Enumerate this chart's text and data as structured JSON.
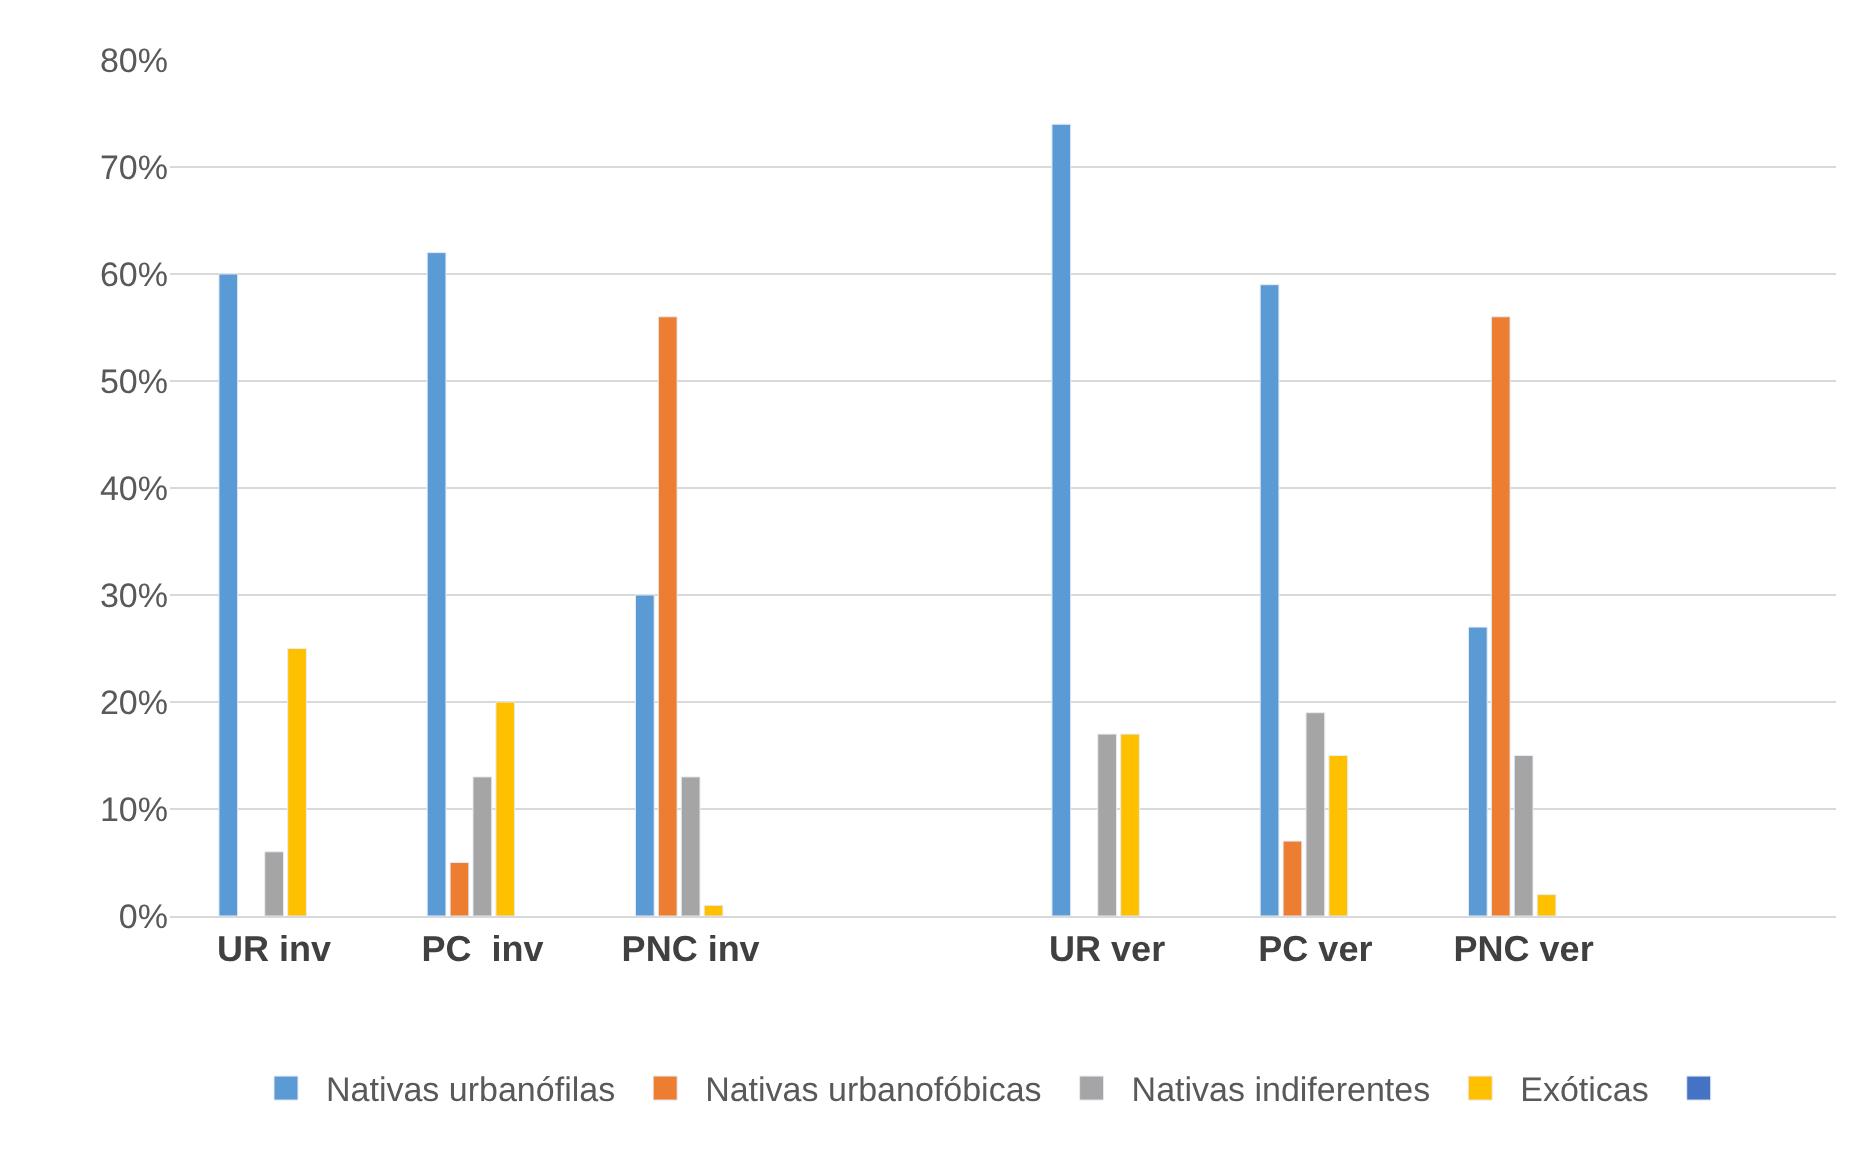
{
  "chart_data": {
    "type": "bar",
    "categories": [
      "UR inv",
      "PC  inv",
      "PNC inv",
      null,
      "UR ver",
      "PC ver",
      "PNC ver",
      null
    ],
    "series": [
      {
        "name": "Nativas urbanófilas",
        "color": "#5b9bd5",
        "values": [
          60,
          62,
          30,
          null,
          74,
          59,
          27,
          null
        ]
      },
      {
        "name": "Nativas urbanofóbicas",
        "color": "#ed7d31",
        "values": [
          null,
          5,
          56,
          null,
          null,
          7,
          56,
          null
        ]
      },
      {
        "name": "Nativas indiferentes",
        "color": "#a5a5a5",
        "values": [
          6,
          13,
          13,
          null,
          17,
          19,
          15,
          null
        ]
      },
      {
        "name": "Exóticas",
        "color": "#ffc000",
        "values": [
          25,
          20,
          1,
          null,
          17,
          15,
          2,
          null
        ]
      },
      {
        "color": "#4472c4",
        "values": [
          null,
          null,
          null,
          null,
          null,
          null,
          null,
          null
        ]
      }
    ],
    "ylim": [
      0,
      80
    ],
    "yticks": [
      {
        "value": 0,
        "label": "0%"
      },
      {
        "value": 10,
        "label": "10%"
      },
      {
        "value": 20,
        "label": "20%"
      },
      {
        "value": 30,
        "label": "30%"
      },
      {
        "value": 40,
        "label": "40%"
      },
      {
        "value": 50,
        "label": "50%"
      },
      {
        "value": 60,
        "label": "60%"
      },
      {
        "value": 70,
        "label": "70%"
      },
      {
        "value": 80,
        "label": "80%"
      }
    ],
    "grid": "y",
    "legend": "bottom"
  }
}
